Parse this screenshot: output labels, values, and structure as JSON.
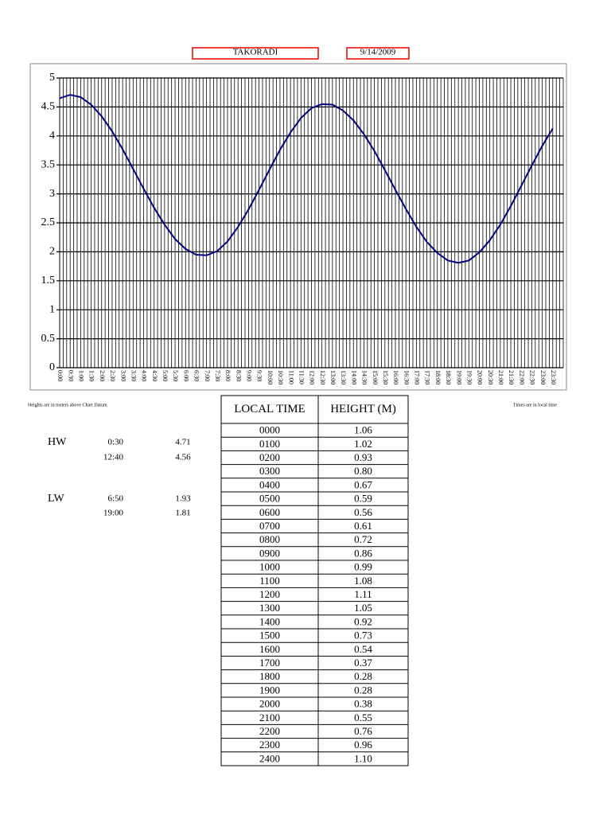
{
  "header": {
    "station": "TAKORADI",
    "date": "9/14/2009"
  },
  "chart_data": {
    "type": "line",
    "categories": [
      "0:00",
      "0:30",
      "1:00",
      "1:30",
      "2:00",
      "2:30",
      "3:00",
      "3:30",
      "4:00",
      "4:30",
      "5:00",
      "5:30",
      "6:00",
      "6:30",
      "7:00",
      "7:30",
      "8:00",
      "8:30",
      "9:00",
      "9:30",
      "10:00",
      "10:30",
      "11:00",
      "11:30",
      "12:00",
      "12:30",
      "13:00",
      "13:30",
      "14:00",
      "14:30",
      "15:00",
      "15:30",
      "16:00",
      "16:30",
      "17:00",
      "17:30",
      "18:00",
      "18:30",
      "19:00",
      "19:30",
      "20:00",
      "20:30",
      "21:00",
      "21:30",
      "22:00",
      "22:30",
      "23:00",
      "23:30"
    ],
    "series": [
      {
        "color": "#000080",
        "values": [
          4.65,
          4.71,
          4.67,
          4.54,
          4.34,
          4.08,
          3.77,
          3.43,
          3.09,
          2.76,
          2.47,
          2.22,
          2.05,
          1.95,
          1.94,
          2.01,
          2.18,
          2.43,
          2.73,
          3.07,
          3.42,
          3.76,
          4.06,
          4.31,
          4.48,
          4.55,
          4.54,
          4.44,
          4.27,
          4.03,
          3.74,
          3.41,
          3.07,
          2.74,
          2.43,
          2.17,
          1.98,
          1.85,
          1.81,
          1.85,
          1.99,
          2.2,
          2.47,
          2.79,
          3.14,
          3.49,
          3.83,
          4.13
        ]
      }
    ],
    "ylim": [
      0,
      5
    ],
    "yticks": [
      0,
      0.5,
      1,
      1.5,
      2,
      2.5,
      3,
      3.5,
      4,
      4.5,
      5
    ],
    "grid": true
  },
  "notes": {
    "left": "Heights are in meters above Chart Datum",
    "right": "Times are in local time"
  },
  "tides": [
    {
      "label": "HW",
      "entries": [
        [
          "0:30",
          "4.71"
        ],
        [
          "12:40",
          "4.56"
        ]
      ]
    },
    {
      "label": "LW",
      "entries": [
        [
          "6:50",
          "1.93"
        ],
        [
          "19:00",
          "1.81"
        ]
      ]
    }
  ],
  "table": {
    "headers": [
      "LOCAL TIME",
      "HEIGHT (M)"
    ],
    "rows": [
      [
        "0000",
        "1.06"
      ],
      [
        "0100",
        "1.02"
      ],
      [
        "0200",
        "0.93"
      ],
      [
        "0300",
        "0.80"
      ],
      [
        "0400",
        "0.67"
      ],
      [
        "0500",
        "0.59"
      ],
      [
        "0600",
        "0.56"
      ],
      [
        "0700",
        "0.61"
      ],
      [
        "0800",
        "0.72"
      ],
      [
        "0900",
        "0.86"
      ],
      [
        "1000",
        "0.99"
      ],
      [
        "1100",
        "1.08"
      ],
      [
        "1200",
        "1.11"
      ],
      [
        "1300",
        "1.05"
      ],
      [
        "1400",
        "0.92"
      ],
      [
        "1500",
        "0.73"
      ],
      [
        "1600",
        "0.54"
      ],
      [
        "1700",
        "0.37"
      ],
      [
        "1800",
        "0.28"
      ],
      [
        "1900",
        "0.28"
      ],
      [
        "2000",
        "0.38"
      ],
      [
        "2100",
        "0.55"
      ],
      [
        "2200",
        "0.76"
      ],
      [
        "2300",
        "0.96"
      ],
      [
        "2400",
        "1.10"
      ]
    ]
  }
}
